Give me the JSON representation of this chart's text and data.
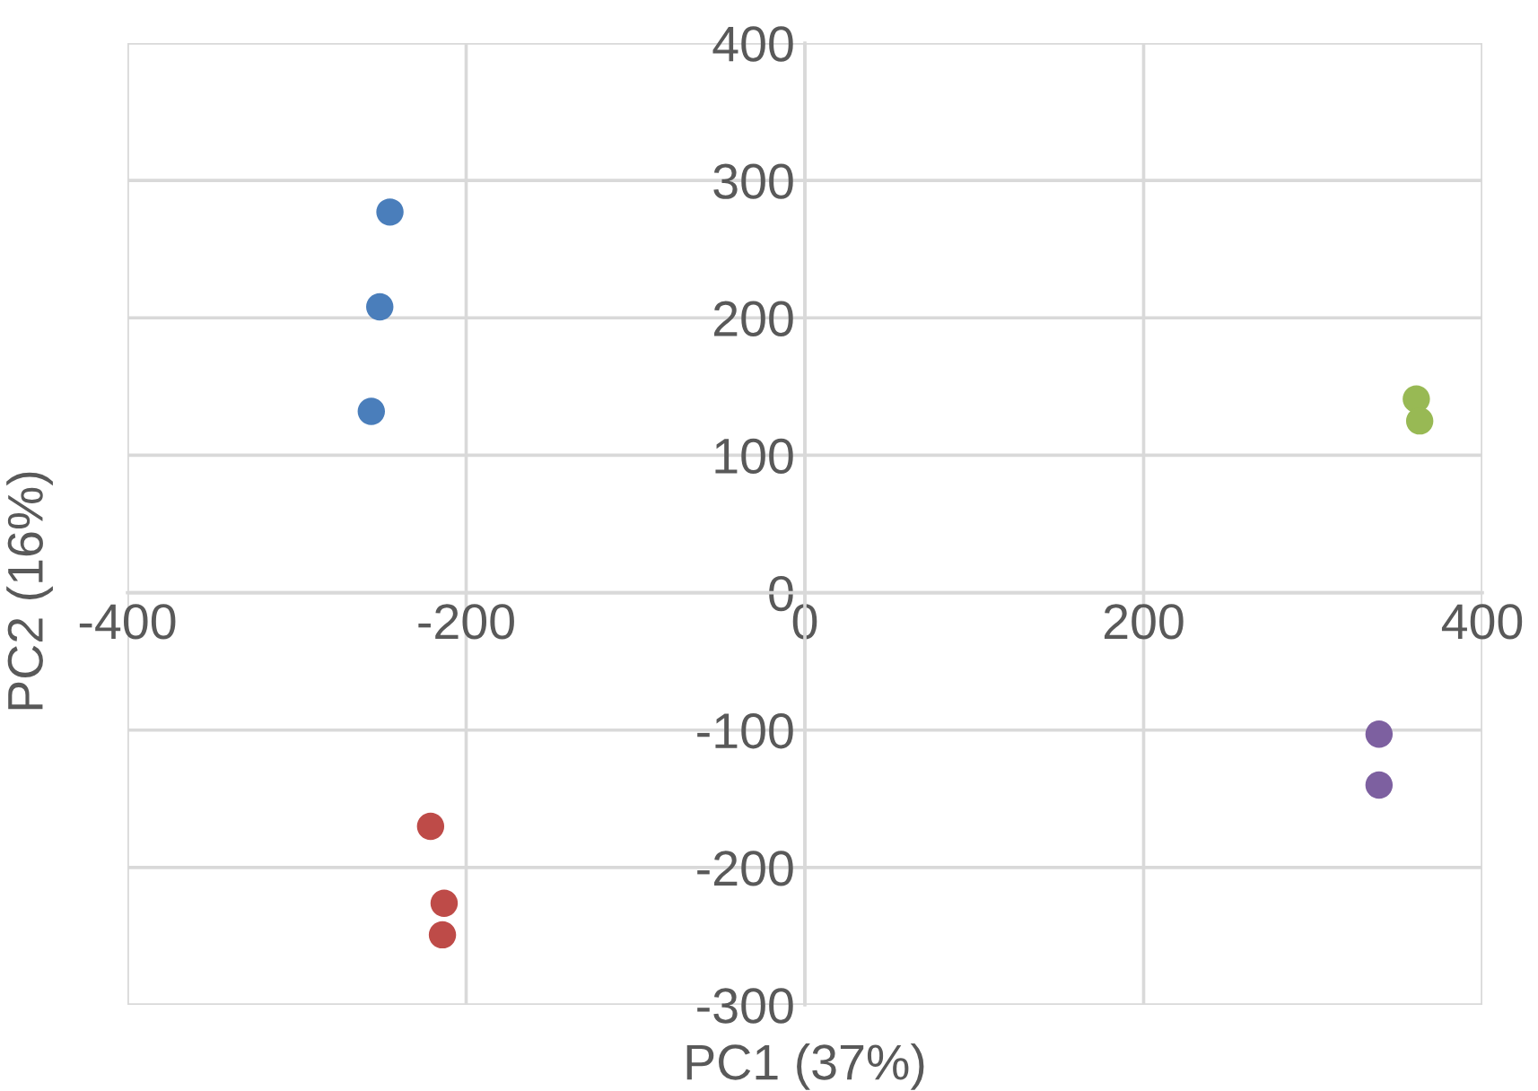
{
  "chart_data": {
    "type": "scatter",
    "xlabel": "PC1 (37%)",
    "ylabel": "PC2 (16%)",
    "xlim": [
      -400,
      400
    ],
    "ylim": [
      -300,
      400
    ],
    "xticks": [
      -400,
      -200,
      0,
      200,
      400
    ],
    "yticks": [
      -300,
      -200,
      -100,
      0,
      100,
      200,
      300,
      400
    ],
    "grid": true,
    "marker": "circle",
    "series": [
      {
        "color": "#4a7ebb",
        "x": [
          -245,
          -251,
          -256
        ],
        "values": [
          277,
          208,
          132
        ]
      },
      {
        "color": "#be4b48",
        "x": [
          -221,
          -213,
          -214
        ],
        "values": [
          -170,
          -226,
          -249
        ]
      },
      {
        "color": "#98b954",
        "x": [
          361,
          363
        ],
        "values": [
          141,
          125
        ]
      },
      {
        "color": "#7d60a0",
        "x": [
          339,
          339
        ],
        "values": [
          -103,
          -140
        ]
      }
    ]
  }
}
